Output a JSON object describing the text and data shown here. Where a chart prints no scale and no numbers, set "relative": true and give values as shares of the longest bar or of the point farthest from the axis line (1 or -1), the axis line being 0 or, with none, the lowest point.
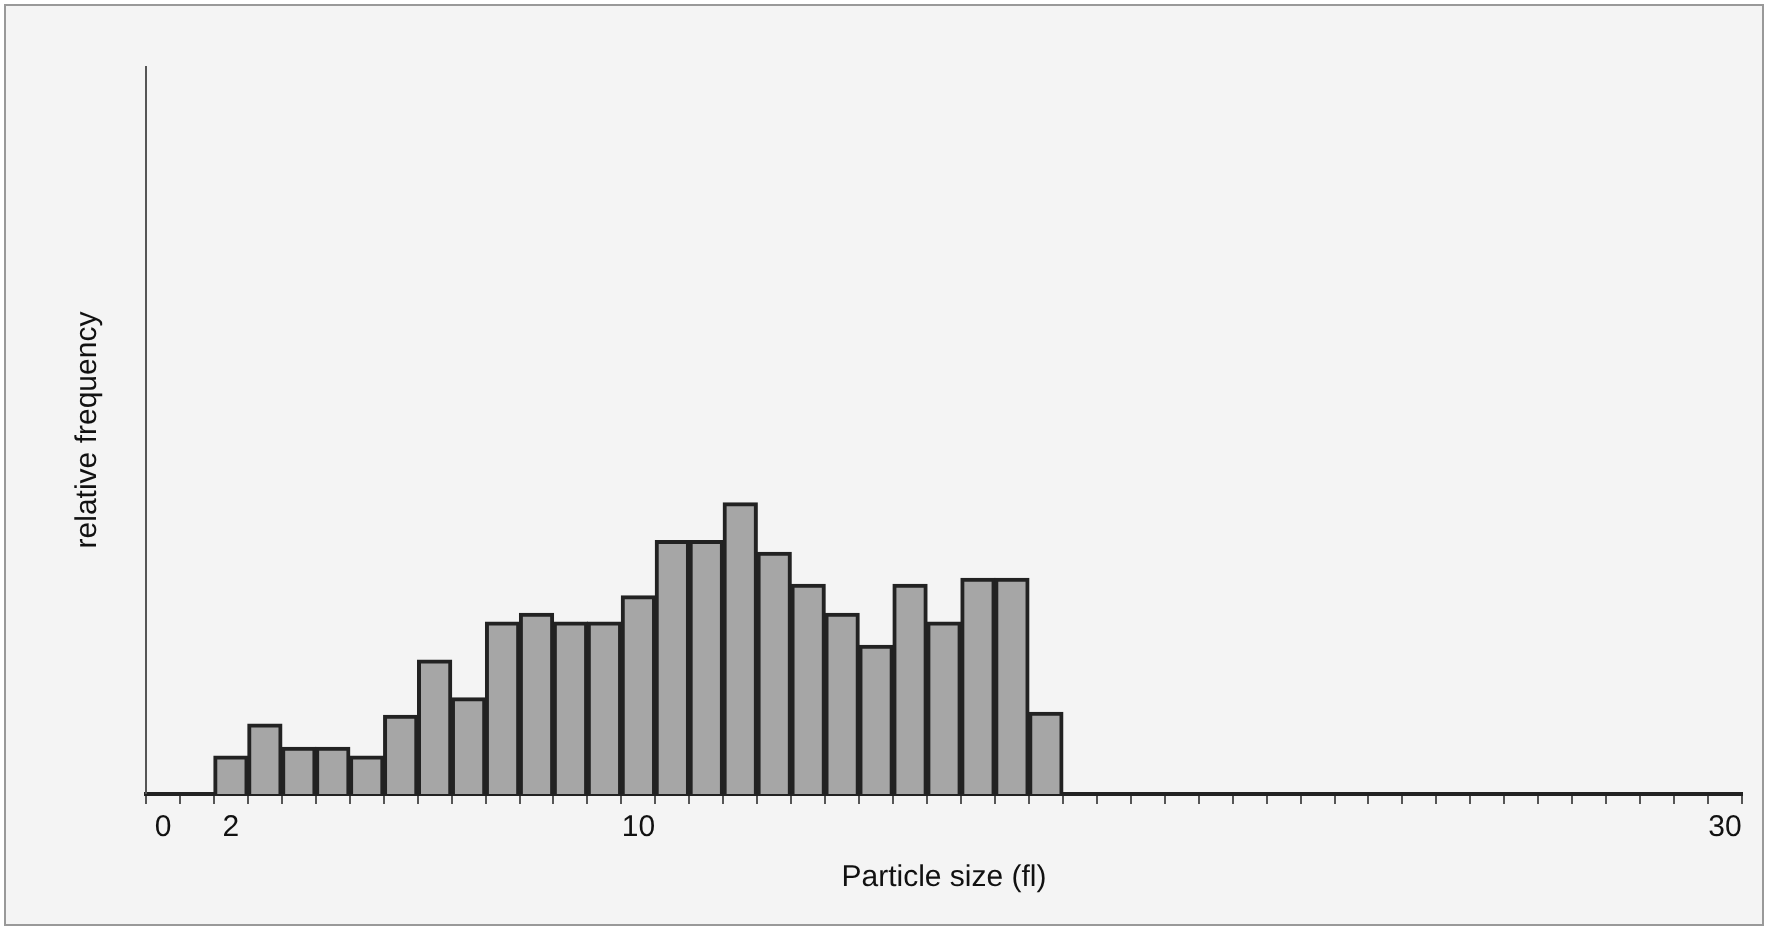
{
  "chart_data": {
    "type": "bar",
    "relative": true,
    "xlabel": "Particle size (fl)",
    "ylabel": "relative frequency",
    "color": "#a6a6a6",
    "legend": false,
    "grid": false,
    "categories": [
      "0",
      null,
      "2",
      null,
      null,
      null,
      null,
      null,
      null,
      null,
      null,
      null,
      null,
      null,
      "10",
      null,
      null,
      null,
      null,
      null,
      null,
      null,
      null,
      null,
      null,
      null,
      null,
      null,
      null,
      null,
      null,
      null,
      null,
      null,
      null,
      null,
      null,
      null,
      null,
      null,
      null,
      null,
      null,
      null,
      null,
      null,
      "30"
    ],
    "values": [
      null,
      null,
      0.13,
      0.24,
      0.16,
      0.16,
      0.13,
      0.27,
      0.46,
      0.33,
      0.59,
      0.62,
      0.59,
      0.59,
      0.68,
      0.87,
      0.87,
      1,
      0.83,
      0.72,
      0.62,
      0.51,
      0.72,
      0.59,
      0.74,
      0.74,
      0.28,
      null,
      null,
      null,
      null,
      null,
      null,
      null,
      null,
      null,
      null,
      null,
      null,
      null,
      null,
      null,
      null,
      null,
      null,
      null,
      null
    ]
  }
}
